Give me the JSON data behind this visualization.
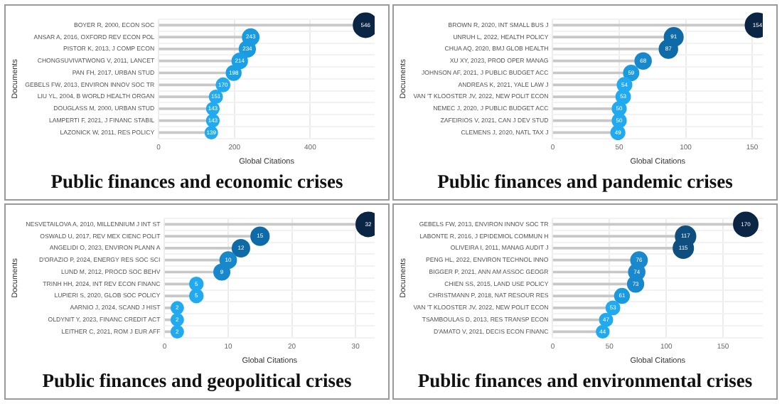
{
  "chart_data": [
    {
      "type": "lollipop",
      "orientation": "horizontal",
      "title": "Public finances and economic crises",
      "xlabel": "Global Citations",
      "ylabel": "Documents",
      "categories": [
        "BOYER R, 2000, ECON SOC",
        "ANSAR A, 2016, OXFORD REV ECON POL",
        "PISTOR K, 2013, J COMP ECON",
        "CHONGSUVIVATWONG V, 2011, LANCET",
        "PAN FH, 2017, URBAN STUD",
        "GEBELS FW, 2013, ENVIRON INNOV SOC TR",
        "LIU YL, 2004, B WORLD HEALTH ORGAN",
        "DOUGLASS M, 2000, URBAN STUD",
        "LAMPERTI F, 2021, J FINANC STABIL",
        "LAZONICK W, 2011, RES POLICY"
      ],
      "values": [
        546,
        243,
        234,
        214,
        198,
        170,
        151,
        143,
        143,
        139
      ],
      "sizes": [
        1,
        0.45,
        0.43,
        0.39,
        0.36,
        0.31,
        0.28,
        0.26,
        0.26,
        0.25
      ],
      "colors": [
        "#0b2545",
        "#1a9be0",
        "#1a9be0",
        "#1aa0e6",
        "#1aa0e6",
        "#22aaf0",
        "#22aaf0",
        "#22aaf0",
        "#22aaf0",
        "#22aaf0"
      ],
      "xlim": [
        0,
        570
      ],
      "xticks": [
        0,
        200,
        400
      ],
      "grid": true,
      "data_labels": true
    },
    {
      "type": "lollipop",
      "orientation": "horizontal",
      "title": "Public finances and pandemic crises",
      "xlabel": "Global Citations",
      "ylabel": "Documents",
      "categories": [
        "BROWN R, 2020, INT SMALL BUS J",
        "UNRUH L, 2022, HEALTH POLICY",
        "CHUA AQ, 2020, BMJ GLOB HEALTH",
        "XU XY, 2023, PROD OPER MANAG",
        "JOHNSON AF, 2021, J PUBLIC BUDGET ACC",
        "ANDREAS K, 2021, YALE LAW J",
        "VAN 'T KLOOSTER JV, 2022, NEW POLIT ECON",
        "NEMEC J, 2020, J PUBLIC BUDGET ACC",
        "ZAFEIRIOS V, 2021, CAN J DEV STUD",
        "CLEMENS J, 2020, NATL TAX J"
      ],
      "values": [
        154,
        91,
        87,
        68,
        59,
        54,
        53,
        50,
        50,
        49
      ],
      "sizes": [
        1,
        0.59,
        0.56,
        0.44,
        0.38,
        0.35,
        0.34,
        0.32,
        0.32,
        0.32
      ],
      "colors": [
        "#0b2545",
        "#0f6aa8",
        "#0f6aa8",
        "#1888cc",
        "#1a9be0",
        "#22aaf0",
        "#22aaf0",
        "#22aaf0",
        "#22aaf0",
        "#22aaf0"
      ],
      "xlim": [
        0,
        158
      ],
      "xticks": [
        0,
        50,
        100,
        150
      ],
      "grid": true,
      "data_labels": true
    },
    {
      "type": "lollipop",
      "orientation": "horizontal",
      "title": "Public finances and geopolitical crises",
      "xlabel": "Global Citations",
      "ylabel": "Documents",
      "categories": [
        "NESVETAILOVA A, 2010, MILLENNIUM J INT ST",
        "OSWALD U, 2017, REV MEX CIENC POLIT",
        "ANGELIDI O, 2023, ENVIRON PLANN A",
        "D'ORAZIO P, 2024, ENERGY RES SOC SCI",
        "LUND M, 2012, PROCD SOC BEHV",
        "TRINH HH, 2024, INT REV ECON FINANC",
        "LUPIERI S, 2020, GLOB SOC POLICY",
        "AARNIO J, 2024, SCAND J HIST",
        "OLDYNIT Y, 2023, FINANC CREDIT ACT",
        "LEITHER C, 2021, ROM J EUR AFF"
      ],
      "values": [
        32,
        15,
        12,
        10,
        9,
        5,
        5,
        2,
        2,
        2
      ],
      "sizes": [
        1,
        0.55,
        0.5,
        0.45,
        0.42,
        0.3,
        0.3,
        0.25,
        0.25,
        0.25
      ],
      "colors": [
        "#0b2545",
        "#0f6aa8",
        "#0f6aa8",
        "#1888cc",
        "#1888cc",
        "#22aaf0",
        "#22aaf0",
        "#22aaf0",
        "#22aaf0",
        "#22aaf0"
      ],
      "xlim": [
        0,
        33
      ],
      "xticks": [
        0,
        10,
        20,
        30
      ],
      "grid": true,
      "data_labels": true
    },
    {
      "type": "lollipop",
      "orientation": "horizontal",
      "title": "Public finances and environmental crises",
      "xlabel": "Global Citations",
      "ylabel": "Documents",
      "categories": [
        "GEBELS FW, 2013, ENVIRON INNOV SOC TR",
        "LABONTE R, 2016, J EPIDEMIOL COMMUN H",
        "OLIVEIRA I, 2011, MANAG AUDIT J",
        "PENG HL, 2022, ENVIRON TECHNOL INNO",
        "BIGGER P, 2021, ANN AM ASSOC GEOGR",
        "CHIEN SS, 2015, LAND USE POLICY",
        "CHRISTMANN P, 2018, NAT RESOUR RES",
        "VAN 'T KLOOSTER JV, 2022, NEW POLIT ECON",
        "TSAMBOULAS D, 2013, RES TRANSP ECON",
        "D'AMATO V, 2021, DECIS ECON FINANC"
      ],
      "values": [
        170,
        117,
        115,
        76,
        74,
        73,
        61,
        53,
        47,
        44
      ],
      "sizes": [
        1,
        0.69,
        0.68,
        0.45,
        0.44,
        0.43,
        0.36,
        0.31,
        0.28,
        0.26
      ],
      "colors": [
        "#0b2545",
        "#0f4f80",
        "#0f4f80",
        "#1a88cc",
        "#1a88cc",
        "#1a88cc",
        "#1a9be0",
        "#22aaf0",
        "#22aaf0",
        "#22aaf0"
      ],
      "xlim": [
        0,
        185
      ],
      "xticks": [
        0,
        50,
        100,
        150
      ],
      "grid": true,
      "data_labels": true
    }
  ]
}
